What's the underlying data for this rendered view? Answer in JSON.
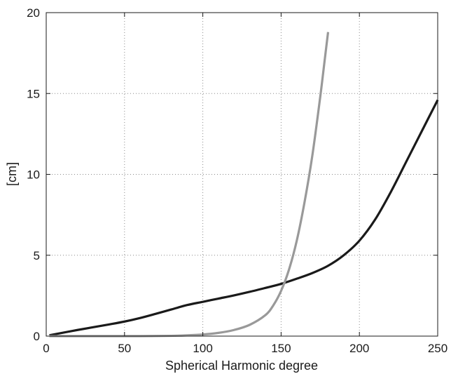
{
  "chart_data": {
    "type": "line",
    "title": "",
    "xlabel": "Spherical Harmonic degree",
    "ylabel": "[cm]",
    "xlim": [
      0,
      250
    ],
    "ylim": [
      0,
      20
    ],
    "xticks": [
      0,
      50,
      100,
      150,
      200,
      250
    ],
    "yticks": [
      0,
      5,
      10,
      15,
      20
    ],
    "grid": true,
    "legend": "none",
    "series": [
      {
        "color": "#1a1a1a",
        "x": [
          2,
          10,
          20,
          30,
          40,
          50,
          60,
          70,
          80,
          90,
          100,
          110,
          120,
          130,
          140,
          150,
          160,
          170,
          180,
          190,
          200,
          210,
          220,
          230,
          240,
          250
        ],
        "y": [
          0.05,
          0.2,
          0.38,
          0.55,
          0.72,
          0.9,
          1.12,
          1.38,
          1.65,
          1.92,
          2.12,
          2.32,
          2.52,
          2.74,
          2.98,
          3.23,
          3.55,
          3.9,
          4.35,
          5.0,
          5.9,
          7.2,
          8.9,
          10.8,
          12.7,
          14.6
        ]
      },
      {
        "color": "#999999",
        "x": [
          2,
          20,
          40,
          60,
          80,
          90,
          100,
          110,
          120,
          130,
          140,
          145,
          150,
          155,
          160,
          165,
          170,
          175,
          178,
          180
        ],
        "y": [
          0.0,
          0.0,
          0.0,
          0.0,
          0.02,
          0.05,
          0.1,
          0.2,
          0.38,
          0.7,
          1.3,
          1.9,
          2.8,
          4.1,
          5.9,
          8.3,
          11.2,
          14.8,
          17.2,
          18.8
        ]
      }
    ]
  }
}
